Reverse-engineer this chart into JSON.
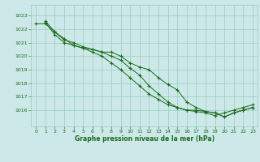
{
  "xlabel": "Graphe pression niveau de la mer (hPa)",
  "background_color": "#cce8e8",
  "grid_color": "#99ccbb",
  "line_color": "#1a6b1a",
  "marker_color": "#1a6b1a",
  "xlim": [
    -0.5,
    23.5
  ],
  "ylim": [
    1014.8,
    1023.8
  ],
  "yticks": [
    1016,
    1017,
    1018,
    1019,
    1020,
    1021,
    1022,
    1023
  ],
  "xticks": [
    0,
    1,
    2,
    3,
    4,
    5,
    6,
    7,
    8,
    9,
    10,
    11,
    12,
    13,
    14,
    15,
    16,
    17,
    18,
    19,
    20,
    21,
    22,
    23
  ],
  "series1_x": [
    0,
    1,
    2,
    3,
    4,
    5,
    6,
    7,
    8,
    9,
    10,
    11,
    12,
    13,
    14,
    15,
    16,
    17,
    18,
    19,
    20,
    21,
    22,
    23
  ],
  "series1_y": [
    1022.4,
    1022.4,
    1021.8,
    1021.3,
    1020.8,
    1020.6,
    1020.5,
    1020.3,
    1020.3,
    1020.0,
    1019.5,
    1019.2,
    1019.0,
    1018.4,
    1017.9,
    1017.5,
    1016.6,
    1016.2,
    1015.9,
    1015.8,
    1015.5,
    1015.8,
    1016.0,
    1016.2
  ],
  "series2_x": [
    1,
    2,
    3,
    4,
    5,
    6,
    7,
    8,
    9,
    10,
    11,
    12,
    13,
    14,
    15,
    16,
    17,
    18,
    19,
    20,
    21,
    22,
    23
  ],
  "series2_y": [
    1022.6,
    1021.8,
    1021.2,
    1021.0,
    1020.7,
    1020.5,
    1020.3,
    1020.0,
    1019.7,
    1019.1,
    1018.6,
    1017.8,
    1017.2,
    1016.6,
    1016.2,
    1016.0,
    1015.9,
    1015.8,
    1015.6,
    1015.8,
    1016.0,
    1016.2,
    1016.4
  ],
  "series3_x": [
    1,
    2,
    3,
    4,
    5,
    6,
    7,
    8,
    9,
    10,
    11,
    12,
    13,
    14,
    15,
    16,
    17,
    18,
    19,
    20,
    21,
    22,
    23
  ],
  "series3_y": [
    1022.5,
    1021.6,
    1021.0,
    1020.8,
    1020.6,
    1020.3,
    1020.0,
    1019.5,
    1019.0,
    1018.4,
    1017.8,
    1017.2,
    1016.8,
    1016.4,
    1016.2,
    1016.0,
    1016.0,
    1015.9,
    1015.8,
    1015.5,
    1015.8,
    1016.0,
    1016.2
  ],
  "xlabel_fontsize": 5.5,
  "tick_fontsize": 4.5,
  "linewidth": 0.7,
  "markersize": 3.0
}
